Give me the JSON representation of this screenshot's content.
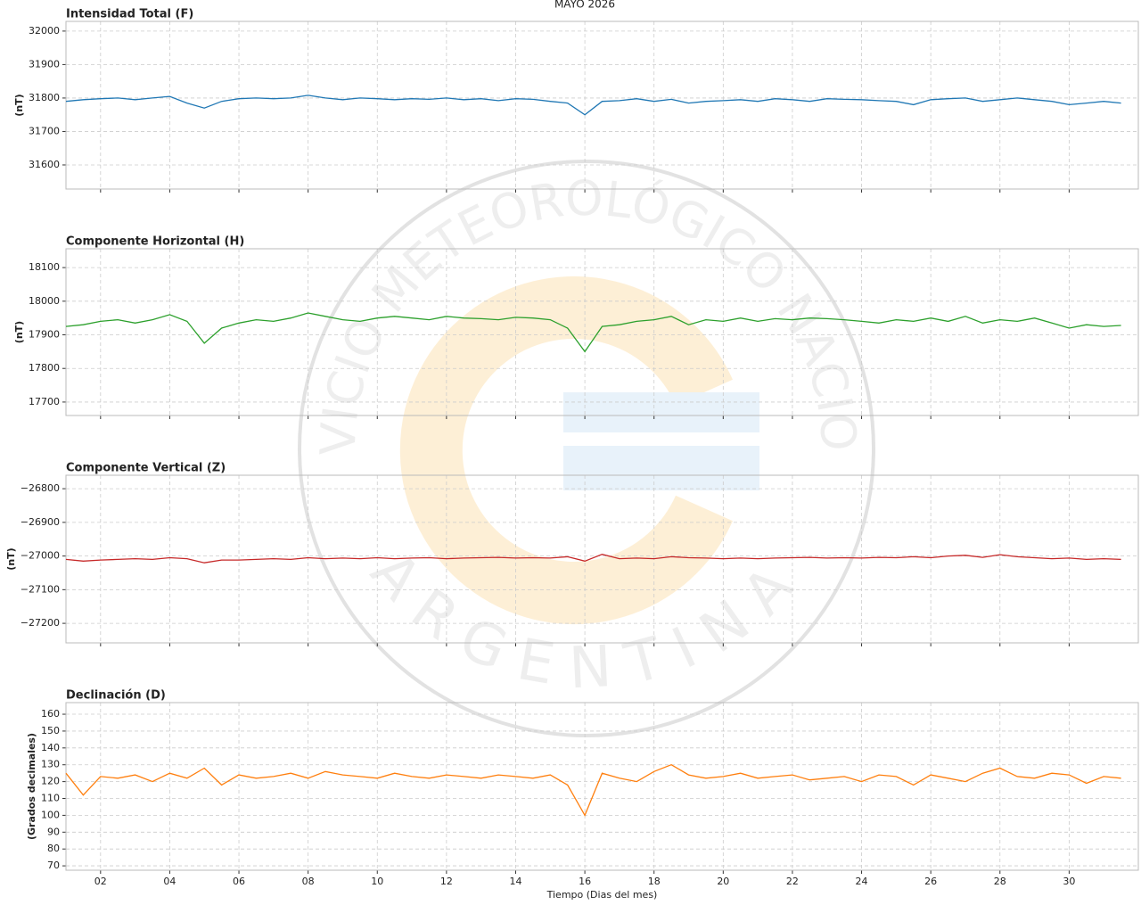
{
  "title": "MAYO 2026",
  "watermark": {
    "top": "SERVICIO METEOROLÓGICO NACIONAL",
    "bottom": "ARGENTINA"
  },
  "chart_data": [
    {
      "type": "line",
      "title": "Intensidad Total (F)",
      "ylabel": "(nT)",
      "color": "#1f77b4",
      "xlim": [
        1,
        32
      ],
      "ylim": [
        31528,
        32029
      ],
      "yticks": [
        31600,
        31700,
        31800,
        31900,
        32000
      ],
      "grid": true,
      "x": [
        1,
        1.5,
        2,
        2.5,
        3,
        3.5,
        4,
        4.5,
        5,
        5.5,
        6,
        6.5,
        7,
        7.5,
        8,
        8.5,
        9,
        9.5,
        10,
        10.5,
        11,
        11.5,
        12,
        12.5,
        13,
        13.5,
        14,
        14.5,
        15,
        15.5,
        16,
        16.5,
        17,
        17.5,
        18,
        18.5,
        19,
        19.5,
        20,
        20.5,
        21,
        21.5,
        22,
        22.5,
        23,
        23.5,
        24,
        24.5,
        25,
        25.5,
        26,
        26.5,
        27,
        27.5,
        28,
        28.5,
        29,
        29.5,
        30,
        30.5,
        31,
        31.5
      ],
      "values": [
        31790,
        31795,
        31798,
        31800,
        31795,
        31800,
        31805,
        31785,
        31770,
        31790,
        31798,
        31800,
        31798,
        31800,
        31808,
        31800,
        31795,
        31800,
        31798,
        31795,
        31798,
        31796,
        31800,
        31795,
        31798,
        31792,
        31798,
        31796,
        31790,
        31785,
        31750,
        31790,
        31792,
        31798,
        31790,
        31796,
        31785,
        31790,
        31792,
        31795,
        31790,
        31798,
        31795,
        31790,
        31798,
        31796,
        31795,
        31792,
        31790,
        31780,
        31795,
        31798,
        31800,
        31790,
        31795,
        31800,
        31795,
        31790,
        31780,
        31785,
        31790,
        31785
      ]
    },
    {
      "type": "line",
      "title": "Componente Horizontal (H)",
      "ylabel": "(nT)",
      "color": "#2ca02c",
      "xlim": [
        1,
        32
      ],
      "ylim": [
        17660,
        18156
      ],
      "yticks": [
        17700,
        17800,
        17900,
        18000,
        18100
      ],
      "grid": true,
      "x": [
        1,
        1.5,
        2,
        2.5,
        3,
        3.5,
        4,
        4.5,
        5,
        5.5,
        6,
        6.5,
        7,
        7.5,
        8,
        8.5,
        9,
        9.5,
        10,
        10.5,
        11,
        11.5,
        12,
        12.5,
        13,
        13.5,
        14,
        14.5,
        15,
        15.5,
        16,
        16.5,
        17,
        17.5,
        18,
        18.5,
        19,
        19.5,
        20,
        20.5,
        21,
        21.5,
        22,
        22.5,
        23,
        23.5,
        24,
        24.5,
        25,
        25.5,
        26,
        26.5,
        27,
        27.5,
        28,
        28.5,
        29,
        29.5,
        30,
        30.5,
        31,
        31.5
      ],
      "values": [
        17925,
        17930,
        17940,
        17945,
        17935,
        17945,
        17960,
        17940,
        17875,
        17920,
        17935,
        17945,
        17940,
        17950,
        17965,
        17955,
        17945,
        17940,
        17950,
        17955,
        17950,
        17945,
        17955,
        17950,
        17948,
        17945,
        17952,
        17950,
        17945,
        17920,
        17850,
        17925,
        17930,
        17940,
        17945,
        17955,
        17930,
        17945,
        17940,
        17950,
        17940,
        17948,
        17945,
        17950,
        17948,
        17945,
        17940,
        17935,
        17945,
        17940,
        17950,
        17940,
        17955,
        17935,
        17945,
        17940,
        17950,
        17935,
        17920,
        17930,
        17925,
        17928
      ]
    },
    {
      "type": "line",
      "title": "Componente Vertical (Z)",
      "ylabel": "(nT)",
      "color": "#c62828",
      "xlim": [
        1,
        32
      ],
      "ylim": [
        -27258,
        -26760
      ],
      "yticks": [
        {
          "value": -27200,
          "label": "−27200"
        },
        {
          "value": -27100,
          "label": "−27100"
        },
        {
          "value": -27000,
          "label": "−27000"
        },
        {
          "value": -26900,
          "label": "−26900"
        },
        {
          "value": -26800,
          "label": "−26800"
        }
      ],
      "grid": true,
      "x": [
        1,
        1.5,
        2,
        2.5,
        3,
        3.5,
        4,
        4.5,
        5,
        5.5,
        6,
        6.5,
        7,
        7.5,
        8,
        8.5,
        9,
        9.5,
        10,
        10.5,
        11,
        11.5,
        12,
        12.5,
        13,
        13.5,
        14,
        14.5,
        15,
        15.5,
        16,
        16.5,
        17,
        17.5,
        18,
        18.5,
        19,
        19.5,
        20,
        20.5,
        21,
        21.5,
        22,
        22.5,
        23,
        23.5,
        24,
        24.5,
        25,
        25.5,
        26,
        26.5,
        27,
        27.5,
        28,
        28.5,
        29,
        29.5,
        30,
        30.5,
        31,
        31.5
      ],
      "values": [
        -27010,
        -27015,
        -27012,
        -27010,
        -27008,
        -27010,
        -27005,
        -27008,
        -27020,
        -27012,
        -27012,
        -27010,
        -27008,
        -27010,
        -27005,
        -27008,
        -27006,
        -27008,
        -27005,
        -27008,
        -27006,
        -27005,
        -27008,
        -27006,
        -27005,
        -27004,
        -27006,
        -27005,
        -27006,
        -27002,
        -27015,
        -26995,
        -27008,
        -27006,
        -27008,
        -27002,
        -27005,
        -27006,
        -27008,
        -27006,
        -27008,
        -27006,
        -27005,
        -27004,
        -27006,
        -27005,
        -27006,
        -27004,
        -27005,
        -27002,
        -27005,
        -27000,
        -26998,
        -27004,
        -26996,
        -27002,
        -27005,
        -27008,
        -27006,
        -27010,
        -27008,
        -27010
      ]
    },
    {
      "type": "line",
      "title": "Declinación (D)",
      "ylabel": "(Grados decimales)",
      "xlabel": "Tiempo (Dias del mes)",
      "color": "#ff7f0e",
      "xlim": [
        1,
        32
      ],
      "ylim": [
        67.4,
        166.9
      ],
      "yticks": [
        70,
        80,
        90,
        100,
        110,
        120,
        130,
        140,
        150,
        160
      ],
      "grid": true,
      "xticks": [
        {
          "value": 2,
          "label": "02"
        },
        {
          "value": 4,
          "label": "04"
        },
        {
          "value": 6,
          "label": "06"
        },
        {
          "value": 8,
          "label": "08"
        },
        10,
        12,
        14,
        16,
        18,
        20,
        22,
        24,
        26,
        28,
        30
      ],
      "x": [
        1,
        1.5,
        2,
        2.5,
        3,
        3.5,
        4,
        4.5,
        5,
        5.5,
        6,
        6.5,
        7,
        7.5,
        8,
        8.5,
        9,
        9.5,
        10,
        10.5,
        11,
        11.5,
        12,
        12.5,
        13,
        13.5,
        14,
        14.5,
        15,
        15.5,
        16,
        16.5,
        17,
        17.5,
        18,
        18.5,
        19,
        19.5,
        20,
        20.5,
        21,
        21.5,
        22,
        22.5,
        23,
        23.5,
        24,
        24.5,
        25,
        25.5,
        26,
        26.5,
        27,
        27.5,
        28,
        28.5,
        29,
        29.5,
        30,
        30.5,
        31,
        31.5
      ],
      "values": [
        125,
        112,
        123,
        122,
        124,
        120,
        125,
        122,
        128,
        118,
        124,
        122,
        123,
        125,
        122,
        126,
        124,
        123,
        122,
        125,
        123,
        122,
        124,
        123,
        122,
        124,
        123,
        122,
        124,
        118,
        100,
        125,
        122,
        120,
        126,
        130,
        124,
        122,
        123,
        125,
        122,
        123,
        124,
        121,
        122,
        123,
        120,
        124,
        123,
        118,
        124,
        122,
        120,
        125,
        128,
        123,
        122,
        125,
        124,
        119,
        123,
        122
      ]
    }
  ]
}
